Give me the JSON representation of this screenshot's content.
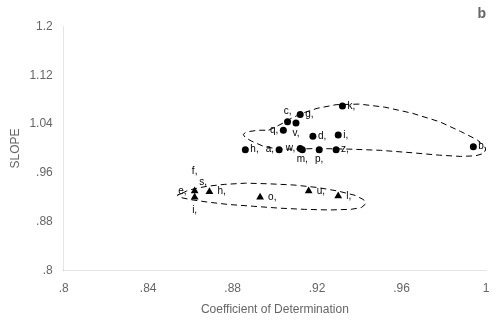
{
  "chart_data": {
    "type": "scatter",
    "title": "b",
    "xlabel": "Coefficient of Determination",
    "ylabel": "SLOPE",
    "xlim": [
      0.8,
      1.0
    ],
    "ylim": [
      0.8,
      1.2
    ],
    "xticks": [
      {
        "value": 0.8,
        "label": ".8"
      },
      {
        "value": 0.84,
        "label": ".84"
      },
      {
        "value": 0.88,
        "label": ".88"
      },
      {
        "value": 0.92,
        "label": ".92"
      },
      {
        "value": 0.96,
        "label": ".96"
      },
      1
    ],
    "yticks": [
      {
        "value": 0.8,
        "label": ".8"
      },
      {
        "value": 0.88,
        "label": ".88"
      },
      {
        "value": 0.96,
        "label": ".96"
      },
      1.04,
      1.12,
      1.2
    ],
    "grid": false,
    "series": [
      {
        "type": "scatter",
        "marker": "circle",
        "color": "#000000",
        "x": [
          0.906,
          0.91,
          0.904,
          0.918,
          0.93,
          0.912,
          0.932,
          0.994,
          0.912,
          0.902,
          0.913,
          0.921,
          0.929,
          0.886
        ],
        "values": [
          1.044,
          1.042,
          1.03,
          1.02,
          1.022,
          1.056,
          1.07,
          1.003,
          1.0,
          0.998,
          0.998,
          0.998,
          0.998,
          0.998
        ],
        "labels": [
          "c,",
          "v,",
          "q,",
          "d,",
          "i,",
          "g,",
          "k,",
          "b,",
          "w,",
          "a,",
          "m,",
          "p,",
          "z,",
          "h,"
        ]
      },
      {
        "type": "scatter",
        "marker": "triangle",
        "color": "#000000",
        "x": [
          0.862,
          0.869,
          0.862,
          0.893,
          0.93,
          0.916
        ],
        "values": [
          0.93,
          0.929,
          0.92,
          0.92,
          0.922,
          0.93
        ],
        "labels": [
          "e,",
          "h,",
          "i,",
          "o,",
          "l,",
          "u,"
        ]
      },
      {
        "type": "line",
        "line_style": "dashed",
        "color": "#000000",
        "x": [
          0.897,
          0.9,
          0.904,
          0.908,
          0.913,
          0.92,
          0.929,
          0.94,
          0.952,
          0.965,
          0.978,
          0.988,
          0.996,
          1.0,
          0.999,
          0.995,
          0.988,
          0.978,
          0.965,
          0.95,
          0.935,
          0.92,
          0.91,
          0.902,
          0.895,
          0.889,
          0.886,
          0.885,
          0.886,
          0.888,
          0.892,
          0.897
        ],
        "values": [
          1.03,
          1.035,
          1.042,
          1.05,
          1.058,
          1.066,
          1.072,
          1.073,
          1.068,
          1.058,
          1.044,
          1.028,
          1.014,
          1.0,
          0.992,
          0.988,
          0.987,
          0.989,
          0.993,
          0.997,
          0.999,
          1.0,
          0.999,
          0.999,
          1.003,
          1.012,
          1.018,
          1.023,
          1.026,
          1.028,
          1.03,
          1.03
        ]
      },
      {
        "type": "line",
        "line_style": "dashed",
        "color": "#000000",
        "x": [
          0.856,
          0.858,
          0.862,
          0.868,
          0.876,
          0.886,
          0.897,
          0.909,
          0.92,
          0.93,
          0.938,
          0.942,
          0.943,
          0.941,
          0.936,
          0.926,
          0.914,
          0.902,
          0.89,
          0.878,
          0.868,
          0.86,
          0.856,
          0.854,
          0.854,
          0.856
        ],
        "values": [
          0.926,
          0.93,
          0.934,
          0.938,
          0.941,
          0.943,
          0.942,
          0.94,
          0.936,
          0.93,
          0.923,
          0.916,
          0.909,
          0.903,
          0.9,
          0.899,
          0.9,
          0.902,
          0.905,
          0.908,
          0.912,
          0.916,
          0.919,
          0.922,
          0.924,
          0.926
        ]
      }
    ],
    "annotations": [
      {
        "text": "f,",
        "x": 0.862,
        "y": 0.963
      },
      {
        "text": "s,",
        "x": 0.866,
        "y": 0.944
      }
    ]
  }
}
